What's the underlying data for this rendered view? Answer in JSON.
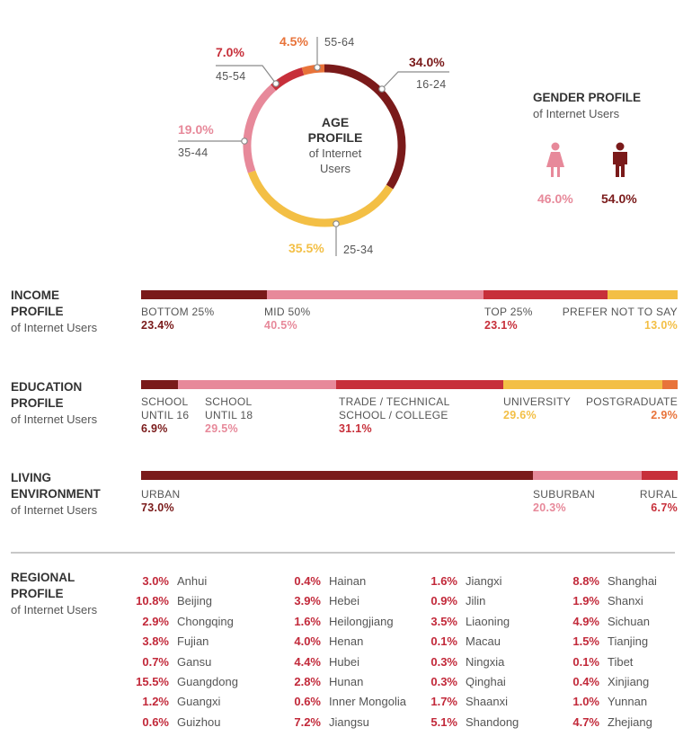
{
  "colors": {
    "dark_red": "#7a1a1a",
    "pink": "#e7899a",
    "red": "#c72f3a",
    "yellow": "#f3bf45",
    "orange": "#e8733a",
    "text_red": "#c2293a"
  },
  "age_profile": {
    "title_line1": "AGE",
    "title_line2": "PROFILE",
    "sub_line1": "of Internet",
    "sub_line2": "Users",
    "segments": [
      {
        "label": "16-24",
        "value": 34.0,
        "value_text": "34.0%",
        "color": "#7a1a1a"
      },
      {
        "label": "25-34",
        "value": 35.5,
        "value_text": "35.5%",
        "color": "#f3bf45"
      },
      {
        "label": "35-44",
        "value": 19.0,
        "value_text": "19.0%",
        "color": "#e7899a"
      },
      {
        "label": "45-54",
        "value": 7.0,
        "value_text": "7.0%",
        "color": "#c72f3a"
      },
      {
        "label": "55-64",
        "value": 4.5,
        "value_text": "4.5%",
        "color": "#e8733a"
      }
    ]
  },
  "gender_profile": {
    "title": "GENDER PROFILE",
    "subtitle": "of Internet Users",
    "female": {
      "value": 46.0,
      "value_text": "46.0%",
      "icon": "female-icon",
      "color": "#e7899a"
    },
    "male": {
      "value": 54.0,
      "value_text": "54.0%",
      "icon": "male-icon",
      "color": "#7a1a1a"
    }
  },
  "income_profile": {
    "title_line1": "INCOME",
    "title_line2": "PROFILE",
    "subtitle": "of Internet Users",
    "segments": [
      {
        "label": "BOTTOM 25%",
        "value": 23.4,
        "value_text": "23.4%",
        "color": "#7a1a1a"
      },
      {
        "label": "MID 50%",
        "value": 40.5,
        "value_text": "40.5%",
        "color": "#e7899a"
      },
      {
        "label": "TOP 25%",
        "value": 23.1,
        "value_text": "23.1%",
        "color": "#c72f3a"
      },
      {
        "label": "PREFER NOT TO SAY",
        "value": 13.0,
        "value_text": "13.0%",
        "color": "#f3bf45"
      }
    ]
  },
  "education_profile": {
    "title_line1": "EDUCATION",
    "title_line2": "PROFILE",
    "subtitle": "of Internet Users",
    "segments": [
      {
        "label_line1": "SCHOOL",
        "label_line2": "UNTIL 16",
        "value": 6.9,
        "value_text": "6.9%",
        "color": "#7a1a1a"
      },
      {
        "label_line1": "SCHOOL",
        "label_line2": "UNTIL 18",
        "value": 29.5,
        "value_text": "29.5%",
        "color": "#e7899a"
      },
      {
        "label_line1": "TRADE / TECHNICAL",
        "label_line2": "SCHOOL / COLLEGE",
        "value": 31.1,
        "value_text": "31.1%",
        "color": "#c72f3a"
      },
      {
        "label_line1": "UNIVERSITY",
        "label_line2": "",
        "value": 29.6,
        "value_text": "29.6%",
        "color": "#f3bf45"
      },
      {
        "label_line1": "POSTGRADUATE",
        "label_line2": "",
        "value": 2.9,
        "value_text": "2.9%",
        "color": "#e8733a"
      }
    ]
  },
  "living_environment": {
    "title_line1": "LIVING",
    "title_line2": "ENVIRONMENT",
    "subtitle": "of Internet Users",
    "segments": [
      {
        "label": "URBAN",
        "value": 73.0,
        "value_text": "73.0%",
        "color": "#7a1a1a"
      },
      {
        "label": "SUBURBAN",
        "value": 20.3,
        "value_text": "20.3%",
        "color": "#e7899a"
      },
      {
        "label": "RURAL",
        "value": 6.7,
        "value_text": "6.7%",
        "color": "#c72f3a"
      }
    ]
  },
  "regional_profile": {
    "title_line1": "REGIONAL",
    "title_line2": "PROFILE",
    "subtitle": "of Internet Users",
    "columns": [
      [
        {
          "value": "3.0%",
          "name": "Anhui"
        },
        {
          "value": "10.8%",
          "name": "Beijing"
        },
        {
          "value": "2.9%",
          "name": "Chongqing"
        },
        {
          "value": "3.8%",
          "name": "Fujian"
        },
        {
          "value": "0.7%",
          "name": "Gansu"
        },
        {
          "value": "15.5%",
          "name": "Guangdong"
        },
        {
          "value": "1.2%",
          "name": "Guangxi"
        },
        {
          "value": "0.6%",
          "name": "Guizhou"
        }
      ],
      [
        {
          "value": "0.4%",
          "name": "Hainan"
        },
        {
          "value": "3.9%",
          "name": "Hebei"
        },
        {
          "value": "1.6%",
          "name": "Heilongjiang"
        },
        {
          "value": "4.0%",
          "name": "Henan"
        },
        {
          "value": "4.4%",
          "name": "Hubei"
        },
        {
          "value": "2.8%",
          "name": "Hunan"
        },
        {
          "value": "0.6%",
          "name": "Inner Mongolia"
        },
        {
          "value": "7.2%",
          "name": "Jiangsu"
        }
      ],
      [
        {
          "value": "1.6%",
          "name": "Jiangxi"
        },
        {
          "value": "0.9%",
          "name": "Jilin"
        },
        {
          "value": "3.5%",
          "name": "Liaoning"
        },
        {
          "value": "0.1%",
          "name": "Macau"
        },
        {
          "value": "0.3%",
          "name": "Ningxia"
        },
        {
          "value": "0.3%",
          "name": "Qinghai"
        },
        {
          "value": "1.7%",
          "name": "Shaanxi"
        },
        {
          "value": "5.1%",
          "name": "Shandong"
        }
      ],
      [
        {
          "value": "8.8%",
          "name": "Shanghai"
        },
        {
          "value": "1.9%",
          "name": "Shanxi"
        },
        {
          "value": "4.9%",
          "name": "Sichuan"
        },
        {
          "value": "1.5%",
          "name": "Tianjing"
        },
        {
          "value": "0.1%",
          "name": "Tibet"
        },
        {
          "value": "0.4%",
          "name": "Xinjiang"
        },
        {
          "value": "1.0%",
          "name": "Yunnan"
        },
        {
          "value": "4.7%",
          "name": "Zhejiang"
        }
      ]
    ]
  },
  "chart_data": [
    {
      "type": "pie",
      "title": "AGE PROFILE",
      "categories": [
        "16-24",
        "25-34",
        "35-44",
        "45-54",
        "55-64"
      ],
      "values": [
        34.0,
        35.5,
        19.0,
        7.0,
        4.5
      ]
    },
    {
      "type": "bar",
      "title": "INCOME PROFILE",
      "categories": [
        "BOTTOM 25%",
        "MID 50%",
        "TOP 25%",
        "PREFER NOT TO SAY"
      ],
      "values": [
        23.4,
        40.5,
        23.1,
        13.0
      ]
    },
    {
      "type": "bar",
      "title": "EDUCATION PROFILE",
      "categories": [
        "SCHOOL UNTIL 16",
        "SCHOOL UNTIL 18",
        "TRADE / TECHNICAL SCHOOL / COLLEGE",
        "UNIVERSITY",
        "POSTGRADUATE"
      ],
      "values": [
        6.9,
        29.5,
        31.1,
        29.6,
        2.9
      ]
    },
    {
      "type": "bar",
      "title": "LIVING ENVIRONMENT",
      "categories": [
        "URBAN",
        "SUBURBAN",
        "RURAL"
      ],
      "values": [
        73.0,
        20.3,
        6.7
      ]
    },
    {
      "type": "bar",
      "title": "GENDER PROFILE",
      "categories": [
        "Female",
        "Male"
      ],
      "values": [
        46.0,
        54.0
      ]
    }
  ]
}
